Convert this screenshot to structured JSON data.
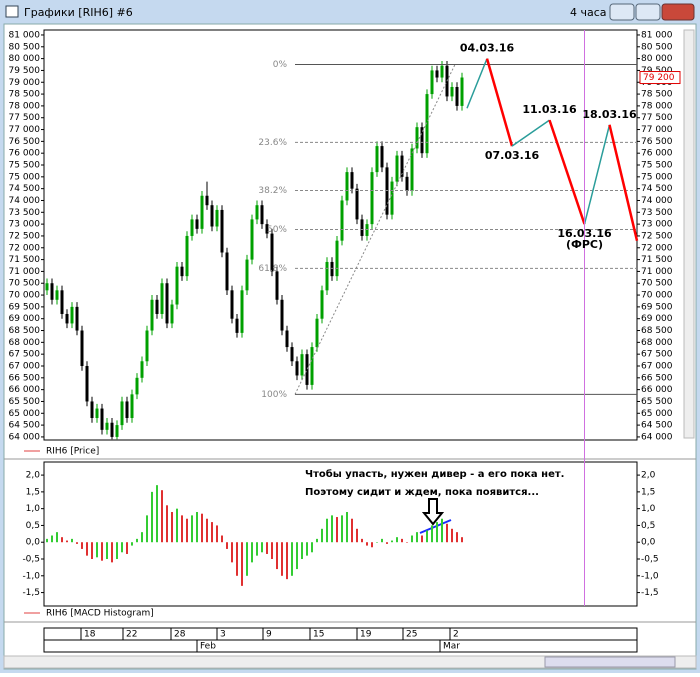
{
  "window": {
    "title": "Графики [RIH6] #6",
    "timeframe": "4 часа"
  },
  "chart_data": [
    {
      "type": "candlestick",
      "legend": "RIH6 [Price]",
      "up_color": "#00a000",
      "down_color": "#000000",
      "ylim": [
        63870,
        81210
      ],
      "yticks": [
        {
          "value": 64000,
          "label": "64 000"
        },
        {
          "value": 64500,
          "label": "64 500"
        },
        {
          "value": 65000,
          "label": "65 000"
        },
        {
          "value": 65500,
          "label": "65 500"
        },
        {
          "value": 66000,
          "label": "66 000"
        },
        {
          "value": 66500,
          "label": "66 500"
        },
        {
          "value": 67000,
          "label": "67 000"
        },
        {
          "value": 67500,
          "label": "67 500"
        },
        {
          "value": 68000,
          "label": "68 000"
        },
        {
          "value": 68500,
          "label": "68 500"
        },
        {
          "value": 69000,
          "label": "69 000"
        },
        {
          "value": 69500,
          "label": "69 500"
        },
        {
          "value": 70000,
          "label": "70 000"
        },
        {
          "value": 70500,
          "label": "70 500"
        },
        {
          "value": 71000,
          "label": "71 000"
        },
        {
          "value": 71500,
          "label": "71 500"
        },
        {
          "value": 72000,
          "label": "72 000"
        },
        {
          "value": 72500,
          "label": "72 500"
        },
        {
          "value": 73000,
          "label": "73 000"
        },
        {
          "value": 73500,
          "label": "73 500"
        },
        {
          "value": 74000,
          "label": "74 000"
        },
        {
          "value": 74500,
          "label": "74 500"
        },
        {
          "value": 75000,
          "label": "75 000"
        },
        {
          "value": 75500,
          "label": "75 500"
        },
        {
          "value": 76000,
          "label": "76 000"
        },
        {
          "value": 76500,
          "label": "76 500"
        },
        {
          "value": 77000,
          "label": "77 000"
        },
        {
          "value": 77500,
          "label": "77 500"
        },
        {
          "value": 78000,
          "label": "78 000"
        },
        {
          "value": 78500,
          "label": "78 500"
        },
        {
          "value": 79000,
          "label": "79 000"
        },
        {
          "value": 79500,
          "label": "79 500"
        },
        {
          "value": 80000,
          "label": "80 000"
        },
        {
          "value": 80500,
          "label": "80 500"
        },
        {
          "value": 81000,
          "label": "81 000"
        }
      ],
      "last_price": {
        "value": 79200,
        "label": "79 200"
      },
      "candles": [
        [
          70200,
          70700,
          70000,
          70500
        ],
        [
          70500,
          70700,
          69600,
          69800
        ],
        [
          69800,
          70400,
          69600,
          70200
        ],
        [
          70200,
          70400,
          69000,
          69200
        ],
        [
          69200,
          69400,
          68600,
          68800
        ],
        [
          68800,
          69700,
          68600,
          69500
        ],
        [
          69500,
          69700,
          68300,
          68500
        ],
        [
          68500,
          68700,
          66800,
          67000
        ],
        [
          67000,
          67200,
          65300,
          65500
        ],
        [
          65500,
          65700,
          64600,
          64800
        ],
        [
          64800,
          65400,
          64600,
          65200
        ],
        [
          65200,
          65400,
          64100,
          64300
        ],
        [
          64300,
          64800,
          64100,
          64600
        ],
        [
          64600,
          64800,
          63900,
          64000
        ],
        [
          64000,
          64700,
          63900,
          64500
        ],
        [
          64500,
          65700,
          64300,
          65500
        ],
        [
          65500,
          65700,
          64600,
          64800
        ],
        [
          64800,
          66000,
          64600,
          65800
        ],
        [
          65800,
          66700,
          65600,
          66500
        ],
        [
          66500,
          67400,
          66300,
          67200
        ],
        [
          67200,
          68700,
          67000,
          68500
        ],
        [
          68500,
          70000,
          68300,
          69800
        ],
        [
          69800,
          70000,
          69000,
          69200
        ],
        [
          69200,
          70700,
          69000,
          70500
        ],
        [
          70500,
          70700,
          68600,
          68800
        ],
        [
          68800,
          69800,
          68600,
          69600
        ],
        [
          69600,
          71400,
          69400,
          71200
        ],
        [
          71200,
          71400,
          70600,
          70800
        ],
        [
          70800,
          72700,
          70600,
          72500
        ],
        [
          72500,
          73400,
          72300,
          73200
        ],
        [
          73200,
          73400,
          72600,
          72800
        ],
        [
          72800,
          74400,
          72600,
          74200
        ],
        [
          74200,
          74800,
          73600,
          73800
        ],
        [
          73800,
          74000,
          72700,
          72900
        ],
        [
          72900,
          73800,
          72700,
          73600
        ],
        [
          73600,
          73800,
          71600,
          71800
        ],
        [
          71800,
          72000,
          70000,
          70200
        ],
        [
          70200,
          70400,
          68800,
          69000
        ],
        [
          69000,
          69200,
          68200,
          68400
        ],
        [
          68400,
          70400,
          68200,
          70200
        ],
        [
          70200,
          71700,
          70000,
          71500
        ],
        [
          71500,
          73400,
          71300,
          73200
        ],
        [
          73200,
          74000,
          73000,
          73800
        ],
        [
          73800,
          74000,
          72800,
          73000
        ],
        [
          73000,
          73200,
          72400,
          72600
        ],
        [
          72600,
          72800,
          70800,
          71000
        ],
        [
          71000,
          71200,
          69600,
          69800
        ],
        [
          69800,
          70000,
          68300,
          68500
        ],
        [
          68500,
          68700,
          67600,
          67800
        ],
        [
          67800,
          68000,
          67000,
          67200
        ],
        [
          67200,
          67400,
          66400,
          66600
        ],
        [
          66600,
          67700,
          66400,
          67500
        ],
        [
          67500,
          67700,
          66000,
          66200
        ],
        [
          66200,
          68000,
          66000,
          67800
        ],
        [
          67800,
          69200,
          67600,
          69000
        ],
        [
          69000,
          70400,
          68800,
          70200
        ],
        [
          70200,
          71600,
          70000,
          71400
        ],
        [
          71400,
          71600,
          70600,
          70800
        ],
        [
          70800,
          72500,
          70600,
          72300
        ],
        [
          72300,
          74200,
          72100,
          74000
        ],
        [
          74000,
          75400,
          73800,
          75200
        ],
        [
          75200,
          75400,
          74300,
          74500
        ],
        [
          74500,
          74700,
          73000,
          73200
        ],
        [
          73200,
          73400,
          72300,
          72500
        ],
        [
          72500,
          73200,
          72300,
          73000
        ],
        [
          73000,
          75400,
          72800,
          75200
        ],
        [
          75200,
          76500,
          75000,
          76300
        ],
        [
          76300,
          76500,
          75200,
          75400
        ],
        [
          75400,
          75600,
          73200,
          73400
        ],
        [
          73400,
          75000,
          73200,
          74800
        ],
        [
          74800,
          76100,
          74600,
          75900
        ],
        [
          75900,
          76100,
          74800,
          75000
        ],
        [
          75000,
          75200,
          74200,
          74400
        ],
        [
          74400,
          76400,
          74200,
          76200
        ],
        [
          76200,
          77300,
          76000,
          77100
        ],
        [
          77100,
          77300,
          75800,
          76000
        ],
        [
          76000,
          78700,
          75800,
          78500
        ],
        [
          78500,
          79700,
          78300,
          79500
        ],
        [
          79500,
          79700,
          79000,
          79200
        ],
        [
          79200,
          79900,
          79000,
          79700
        ],
        [
          79700,
          79900,
          78200,
          78400
        ],
        [
          78400,
          79000,
          78200,
          78800
        ],
        [
          78800,
          79000,
          77800,
          78000
        ],
        [
          78000,
          79400,
          77800,
          79200
        ]
      ],
      "fibonacci": [
        {
          "value": 79750,
          "label": "0%"
        },
        {
          "value": 76460,
          "label": "23.6%"
        },
        {
          "value": 74420,
          "label": "38.2%"
        },
        {
          "value": 72775,
          "label": "50%"
        },
        {
          "value": 71130,
          "label": "61.8%"
        },
        {
          "value": 65800,
          "label": "100%"
        }
      ],
      "forecast": [
        {
          "x": 84,
          "value": 77900
        },
        {
          "x": 88,
          "value": 80000,
          "label": "04.03.16"
        },
        {
          "x": 93,
          "value": 76300,
          "label": "07.03.16"
        },
        {
          "x": 100.5,
          "value": 77400,
          "label": "11.03.16"
        },
        {
          "x": 107.5,
          "value": 73000,
          "label": "16.03.16",
          "note": "(ФРС)"
        },
        {
          "x": 112.5,
          "value": 77200,
          "label": "18.03.16"
        },
        {
          "x": 118,
          "value": 72300
        }
      ],
      "forecast_up_color": "#2a9d9a",
      "forecast_down_color": "#ff0000",
      "event_line_color": "#d070e0"
    },
    {
      "type": "bar",
      "legend": "RIH6 [MACD Histogram]",
      "up_color": "#33cc33",
      "down_color": "#e03030",
      "ylim": [
        -1.9,
        2.39
      ],
      "yticks": [
        {
          "value": 2,
          "label": "2,0"
        },
        {
          "value": 1.5,
          "label": "1,5"
        },
        {
          "value": 1,
          "label": "1,0"
        },
        {
          "value": 0.5,
          "label": "0,5"
        },
        {
          "value": 0,
          "label": "0,0"
        },
        {
          "value": -0.5,
          "label": "-0,5"
        },
        {
          "value": -1,
          "label": "-1,0"
        },
        {
          "value": -1.5,
          "label": "-1,5"
        }
      ],
      "values": [
        0.1,
        0.2,
        0.3,
        0.15,
        0.05,
        0.1,
        -0.05,
        -0.2,
        -0.4,
        -0.5,
        -0.45,
        -0.55,
        -0.5,
        -0.6,
        -0.5,
        -0.3,
        -0.35,
        -0.1,
        0.1,
        0.3,
        0.8,
        1.5,
        1.7,
        1.55,
        1.1,
        0.9,
        1.0,
        0.8,
        0.7,
        0.8,
        0.9,
        0.85,
        0.7,
        0.6,
        0.5,
        0.2,
        -0.2,
        -0.6,
        -1.0,
        -1.3,
        -1.0,
        -0.6,
        -0.4,
        -0.3,
        -0.35,
        -0.5,
        -0.8,
        -1.0,
        -1.1,
        -1.0,
        -0.8,
        -0.5,
        -0.4,
        -0.3,
        0.1,
        0.4,
        0.7,
        0.8,
        0.75,
        0.8,
        0.9,
        0.7,
        0.4,
        0.1,
        -0.1,
        -0.15,
        0.0,
        0.1,
        -0.05,
        0.05,
        0.15,
        0.1,
        0.0,
        0.2,
        0.3,
        0.2,
        0.35,
        0.5,
        0.6,
        0.7,
        0.55,
        0.4,
        0.3,
        0.15
      ],
      "annotation": [
        "Чтобы упасть, нужен дивер - а его пока нет.",
        "Поэтому сидит и ждем, пока появится..."
      ]
    }
  ],
  "time_axis": {
    "days": [
      "18",
      "22",
      "28",
      "3",
      "9",
      "15",
      "19",
      "25",
      "2"
    ],
    "months": [
      "Feb",
      "Mar"
    ]
  }
}
